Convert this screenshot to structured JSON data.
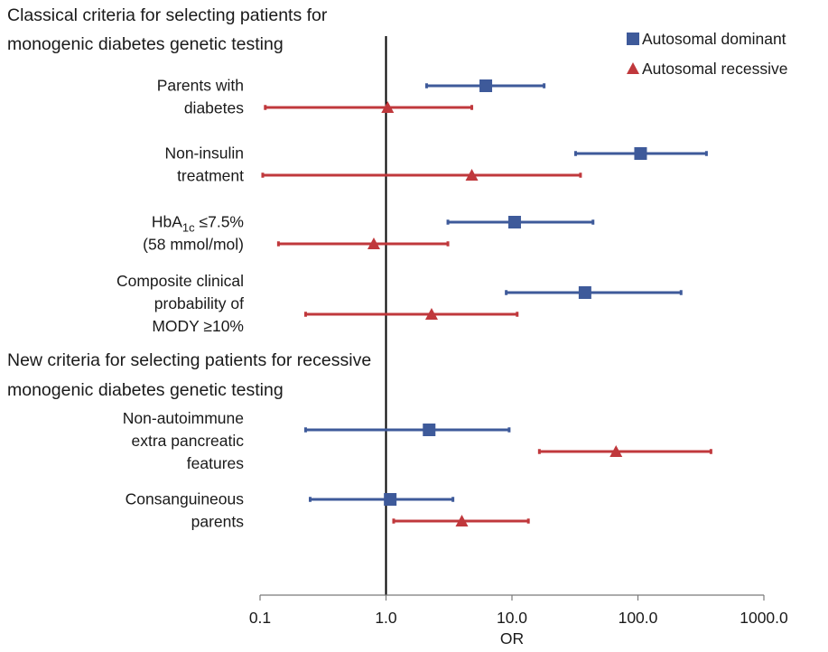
{
  "chart_data": {
    "type": "forest",
    "xlabel": "OR",
    "xscale": "log",
    "xlim": [
      0.1,
      1000.0
    ],
    "ticks": [
      {
        "value": 0.1,
        "label": "0.1"
      },
      {
        "value": 1.0,
        "label": "1.0"
      },
      {
        "value": 10.0,
        "label": "10.0"
      },
      {
        "value": 100.0,
        "label": "100.0"
      },
      {
        "value": 1000.0,
        "label": "1000.0"
      }
    ],
    "reference_line": 1.0,
    "grid": false,
    "legend_position": "top-right",
    "series": [
      {
        "key": "ad",
        "name": "Autosomal dominant",
        "marker": "square",
        "color": "#3e5a9a"
      },
      {
        "key": "ar",
        "name": "Autosomal recessive",
        "marker": "triangle",
        "color": "#c0383c"
      }
    ],
    "sections": [
      {
        "heading": [
          "Classical criteria for selecting patients for",
          "monogenic diabetes genetic testing"
        ],
        "rows": [
          {
            "label": [
              "Parents with",
              "diabetes"
            ],
            "ad": {
              "or": 6.2,
              "low": 2.1,
              "high": 18.0
            },
            "ar": {
              "or": 1.03,
              "low": 0.11,
              "high": 4.8
            }
          },
          {
            "label": [
              "Non-insulin",
              "treatment"
            ],
            "ad": {
              "or": 105.0,
              "low": 32.0,
              "high": 350.0
            },
            "ar": {
              "or": 4.8,
              "low": 0.105,
              "high": 35.0
            }
          },
          {
            "label": [
              "HbA1c ≤7.5%",
              "(58 mmol/mol)"
            ],
            "ad": {
              "or": 10.5,
              "low": 3.1,
              "high": 44.0
            },
            "ar": {
              "or": 0.8,
              "low": 0.14,
              "high": 3.1
            }
          },
          {
            "label": [
              "Composite clinical",
              "probability of",
              "MODY ≥10%"
            ],
            "ad": {
              "or": 38.0,
              "low": 9.0,
              "high": 220.0
            },
            "ar": {
              "or": 2.3,
              "low": 0.23,
              "high": 11.0
            }
          }
        ]
      },
      {
        "heading": [
          "New criteria for selecting patients for recessive",
          "monogenic diabetes genetic testing"
        ],
        "rows": [
          {
            "label": [
              "Non-autoimmune",
              "extra pancreatic",
              "features"
            ],
            "ad": {
              "or": 2.2,
              "low": 0.23,
              "high": 9.5
            },
            "ar": {
              "or": 67.0,
              "low": 16.5,
              "high": 380.0
            }
          },
          {
            "label": [
              "Consanguineous",
              "parents"
            ],
            "ad": {
              "or": 1.08,
              "low": 0.25,
              "high": 3.4
            },
            "ar": {
              "or": 4.0,
              "low": 1.15,
              "high": 13.5
            }
          }
        ]
      }
    ]
  }
}
